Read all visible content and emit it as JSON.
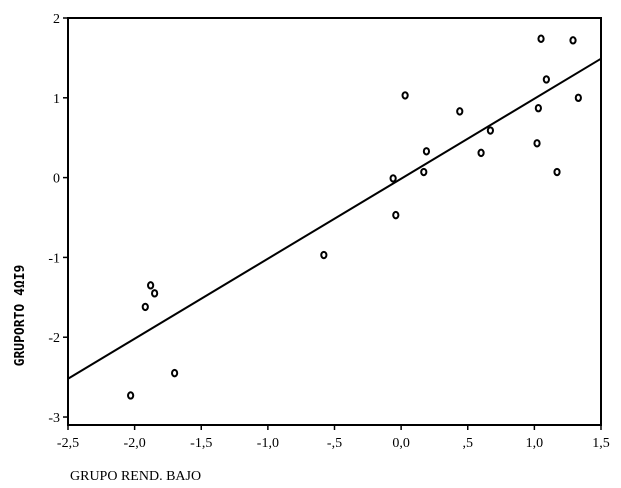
{
  "chart_data": {
    "type": "scatter",
    "xlabel": "GRUPO REND. BAJO",
    "ylabel": "GRUPORTO 4ΩI9",
    "xlim": [
      -2.5,
      1.5
    ],
    "ylim": [
      -3.1,
      2.0
    ],
    "xticks": [
      -2.5,
      -2.0,
      -1.5,
      -1.0,
      -0.5,
      0.0,
      0.5,
      1.0,
      1.5
    ],
    "xtick_labels": [
      "-2,5",
      "-2,0",
      "-1,5",
      "-1,0",
      "-,5",
      "0,0",
      ",5",
      "1,0",
      "1,5"
    ],
    "yticks": [
      2,
      1,
      0,
      -1,
      -2,
      -3
    ],
    "ytick_labels": [
      "2",
      "1",
      "0",
      "-1",
      "-2",
      "-3"
    ],
    "points": [
      {
        "x": -2.03,
        "y": -2.73
      },
      {
        "x": -1.7,
        "y": -2.45
      },
      {
        "x": -1.92,
        "y": -1.62
      },
      {
        "x": -1.88,
        "y": -1.35
      },
      {
        "x": -1.85,
        "y": -1.45
      },
      {
        "x": -0.58,
        "y": -0.97
      },
      {
        "x": -0.04,
        "y": -0.47
      },
      {
        "x": -0.06,
        "y": -0.01
      },
      {
        "x": 0.03,
        "y": 1.03
      },
      {
        "x": 0.17,
        "y": 0.07
      },
      {
        "x": 0.19,
        "y": 0.33
      },
      {
        "x": 0.44,
        "y": 0.83
      },
      {
        "x": 0.6,
        "y": 0.31
      },
      {
        "x": 0.67,
        "y": 0.59
      },
      {
        "x": 1.02,
        "y": 0.43
      },
      {
        "x": 1.03,
        "y": 0.87
      },
      {
        "x": 1.05,
        "y": 1.74
      },
      {
        "x": 1.09,
        "y": 1.23
      },
      {
        "x": 1.17,
        "y": 0.07
      },
      {
        "x": 1.29,
        "y": 1.72
      },
      {
        "x": 1.33,
        "y": 1.0
      }
    ],
    "fit_line": {
      "x": [
        -2.5,
        1.5
      ],
      "y": [
        -2.52,
        1.49
      ]
    },
    "grid": false
  }
}
